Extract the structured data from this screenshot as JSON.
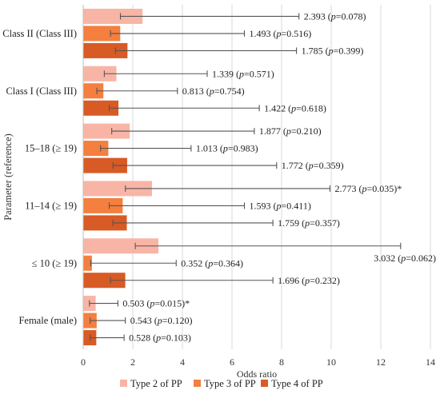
{
  "chart_data": {
    "type": "bar",
    "orientation": "horizontal",
    "xlabel": "Odds ratio",
    "ylabel": "Parameter (reference)",
    "xlim": [
      0,
      14
    ],
    "xticks": [
      "0",
      "2",
      "4",
      "6",
      "8",
      "10",
      "12",
      "14"
    ],
    "grid": true,
    "legend_position": "bottom",
    "categories": [
      "Class II (Class III)",
      "Class I (Class III)",
      "15–18 (≥ 19)",
      "11–14 (≥ 19)",
      "≤ 10 (≥ 19)",
      "Female (male)"
    ],
    "series": [
      {
        "name": "Type 2 of PP",
        "color": "#f8b5a6",
        "values": [
          2.393,
          1.339,
          1.877,
          2.773,
          3.032,
          0.503
        ],
        "ci_low": [
          1.5,
          0.85,
          1.15,
          1.7,
          2.1,
          0.25
        ],
        "ci_high": [
          8.7,
          5.0,
          6.9,
          9.95,
          12.8,
          1.4
        ],
        "labels": [
          "2.393 (p=0.078)",
          "1.339 (p=0.571)",
          "1.877 (p=0.210)",
          "2.773 (p=0.035)*",
          "3.032 (p=0.062)",
          "0.503 (p=0.015)*"
        ]
      },
      {
        "name": "Type 3 of PP",
        "color": "#f47f3f",
        "values": [
          1.493,
          0.813,
          1.013,
          1.593,
          0.352,
          0.543
        ],
        "ci_low": [
          1.1,
          0.55,
          0.7,
          1.05,
          0.3,
          0.28
        ],
        "ci_high": [
          6.5,
          3.8,
          4.35,
          6.5,
          3.75,
          1.7
        ],
        "labels": [
          "1.493 (p=0.516)",
          "0.813 (p=0.754)",
          "1.013 (p=0.983)",
          "1.593 (p=0.411)",
          "0.352 (p=0.364)",
          "0.543 (p=0.120)"
        ]
      },
      {
        "name": "Type 4 of PP",
        "color": "#d85a25",
        "values": [
          1.785,
          1.422,
          1.772,
          1.759,
          1.696,
          0.528
        ],
        "ci_low": [
          1.3,
          1.05,
          1.2,
          1.2,
          1.1,
          0.28
        ],
        "ci_high": [
          8.6,
          7.1,
          7.8,
          7.65,
          7.65,
          1.65
        ],
        "labels": [
          "1.785 (p=0.399)",
          "1.422 (p=0.618)",
          "1.772 (p=0.359)",
          "1.759 (p=0.357)",
          "1.696 (p=0.232)",
          "0.528 (p=0.103)"
        ]
      }
    ]
  }
}
